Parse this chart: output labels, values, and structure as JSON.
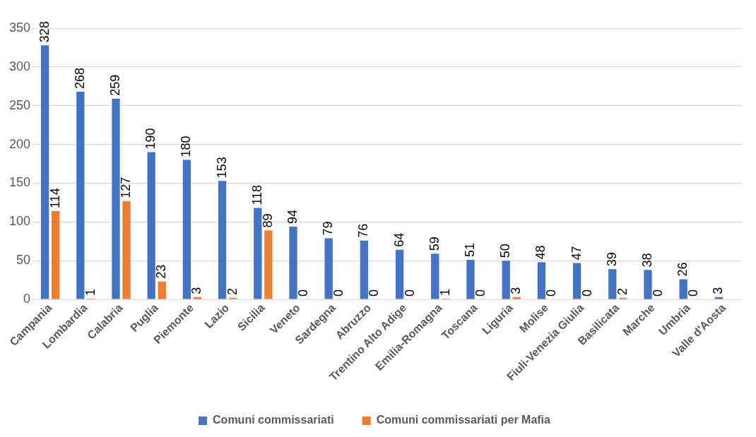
{
  "chart_data": {
    "type": "bar",
    "categories": [
      "Campania",
      "Lombardia",
      "Calabria",
      "Puglia",
      "Piemonte",
      "Lazio",
      "Sicilia",
      "Veneto",
      "Sardegna",
      "Abruzzo",
      "Trentino Alto Adige",
      "Emilia-Romagna",
      "Toscana",
      "Liguria",
      "Molise",
      "Fiuli-Venezia Giulia",
      "Basilicata",
      "Marche",
      "Umbria",
      "Valle d'Aosta"
    ],
    "series": [
      {
        "name": "Comuni commissariati",
        "color": "#4472c4",
        "values": [
          328,
          268,
          259,
          190,
          180,
          153,
          118,
          94,
          79,
          76,
          64,
          59,
          51,
          50,
          48,
          47,
          39,
          38,
          26,
          3
        ]
      },
      {
        "name": "Comuni commissariati per Mafia",
        "color": "#ed7d31",
        "values": [
          114,
          1,
          127,
          23,
          3,
          2,
          89,
          0,
          0,
          0,
          0,
          1,
          0,
          3,
          0,
          0,
          2,
          0,
          0,
          null
        ]
      }
    ],
    "ylim": [
      0,
      350
    ],
    "yticks": [
      0,
      50,
      100,
      150,
      200,
      250,
      300,
      350
    ],
    "grid": "y",
    "legend": "bottom",
    "data_labels": true
  }
}
